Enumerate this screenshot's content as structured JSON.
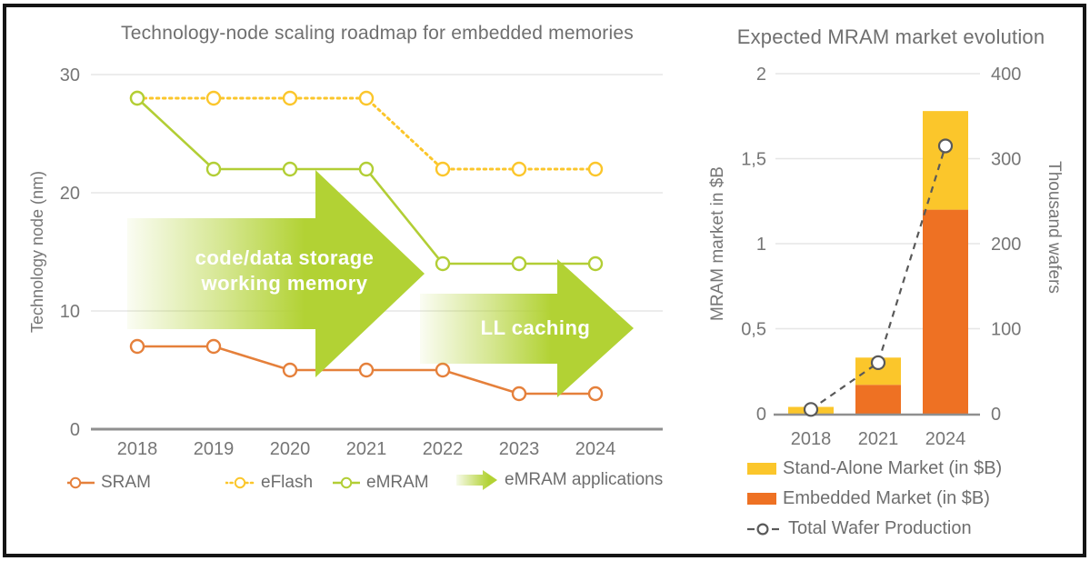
{
  "frame": {
    "border_color": "#151515",
    "background": "#FFFFFF"
  },
  "palette": {
    "sram_orange": "#E5803B",
    "embedded_orange": "#EE7123",
    "yellow": "#FBC62B",
    "emram_green": "#B2CE35",
    "arrow_green": "#B2D234",
    "wafer_gray": "#595959",
    "grid_gray": "#E6E6E6",
    "axis_gray": "#8F8F8F",
    "text_gray": "#767676"
  },
  "left_chart": {
    "legend": [
      {
        "label": "SRAM",
        "icon": "sram-line-marker"
      },
      {
        "label": "eFlash",
        "icon": "eflash-dotted-marker"
      },
      {
        "label": "eMRAM",
        "icon": "emram-line-marker"
      },
      {
        "label": "eMRAM applications",
        "icon": "gradient-arrow"
      }
    ]
  },
  "right_chart": {
    "legend": [
      {
        "label": "Stand-Alone Market (in $B)",
        "icon": "yellow-swatch"
      },
      {
        "label": "Embedded Market (in $B)",
        "icon": "orange-swatch"
      },
      {
        "label": "Total Wafer Production",
        "icon": "dashed-circle-marker"
      }
    ]
  },
  "chart_data": [
    {
      "type": "line",
      "title": "Technology-node scaling roadmap for embedded memories",
      "xlabel": "",
      "ylabel": "Technology node (nm)",
      "x": [
        "2018",
        "2019",
        "2020",
        "2021",
        "2022",
        "2023",
        "2024"
      ],
      "ylim": [
        0,
        30
      ],
      "yticks": [
        0,
        10,
        20,
        30
      ],
      "grid": true,
      "legend_position": "bottom",
      "series": [
        {
          "name": "SRAM",
          "values": [
            7,
            7,
            5,
            5,
            5,
            3,
            3
          ],
          "color": "#E5803B",
          "line_style": "solid",
          "marker": "circle"
        },
        {
          "name": "eFlash",
          "values": [
            28,
            28,
            28,
            28,
            22,
            22,
            22
          ],
          "color": "#FBC62B",
          "line_style": "dotted",
          "marker": "circle"
        },
        {
          "name": "eMRAM",
          "values": [
            28,
            22,
            22,
            22,
            14,
            14,
            14
          ],
          "color": "#B2CE35",
          "line_style": "solid",
          "marker": "circle"
        }
      ],
      "annotations": [
        {
          "kind": "gradient-arrow",
          "lines": [
            "code/data storage",
            "working memory"
          ],
          "color": "#B2D234",
          "x_span": [
            "2018",
            "2022"
          ]
        },
        {
          "kind": "gradient-arrow",
          "lines": [
            "LL caching"
          ],
          "color": "#B2D234",
          "x_span": [
            "2022",
            "2024"
          ]
        }
      ]
    },
    {
      "type": "bar",
      "stacked": true,
      "title": "Expected MRAM market evolution",
      "ylabel_left": "MRAM market in $B",
      "ylabel_right": "Thousand wafers",
      "categories": [
        "2018",
        "2021",
        "2024"
      ],
      "ylim_left": [
        0,
        2
      ],
      "yticks_left": [
        "0",
        "0,5",
        "1",
        "1,5",
        "2"
      ],
      "ytick_values_left": [
        0,
        0.5,
        1,
        1.5,
        2
      ],
      "ylim_right": [
        0,
        400
      ],
      "yticks_right": [
        "0",
        "100",
        "200",
        "300",
        "400"
      ],
      "ytick_values_right": [
        0,
        100,
        200,
        300,
        400
      ],
      "grid": true,
      "legend_position": "bottom",
      "series": [
        {
          "name": "Embedded Market (in $B)",
          "type": "bar",
          "values": [
            0,
            0.17,
            1.2
          ],
          "color": "#EE7123"
        },
        {
          "name": "Stand-Alone Market (in $B)",
          "type": "bar",
          "values": [
            0.04,
            0.16,
            0.58
          ],
          "color": "#FBC62B"
        },
        {
          "name": "Total Wafer Production",
          "type": "line",
          "axis": "right",
          "values": [
            5,
            60,
            315
          ],
          "color": "#595959",
          "line_style": "dashed",
          "marker": "circle"
        }
      ]
    }
  ]
}
